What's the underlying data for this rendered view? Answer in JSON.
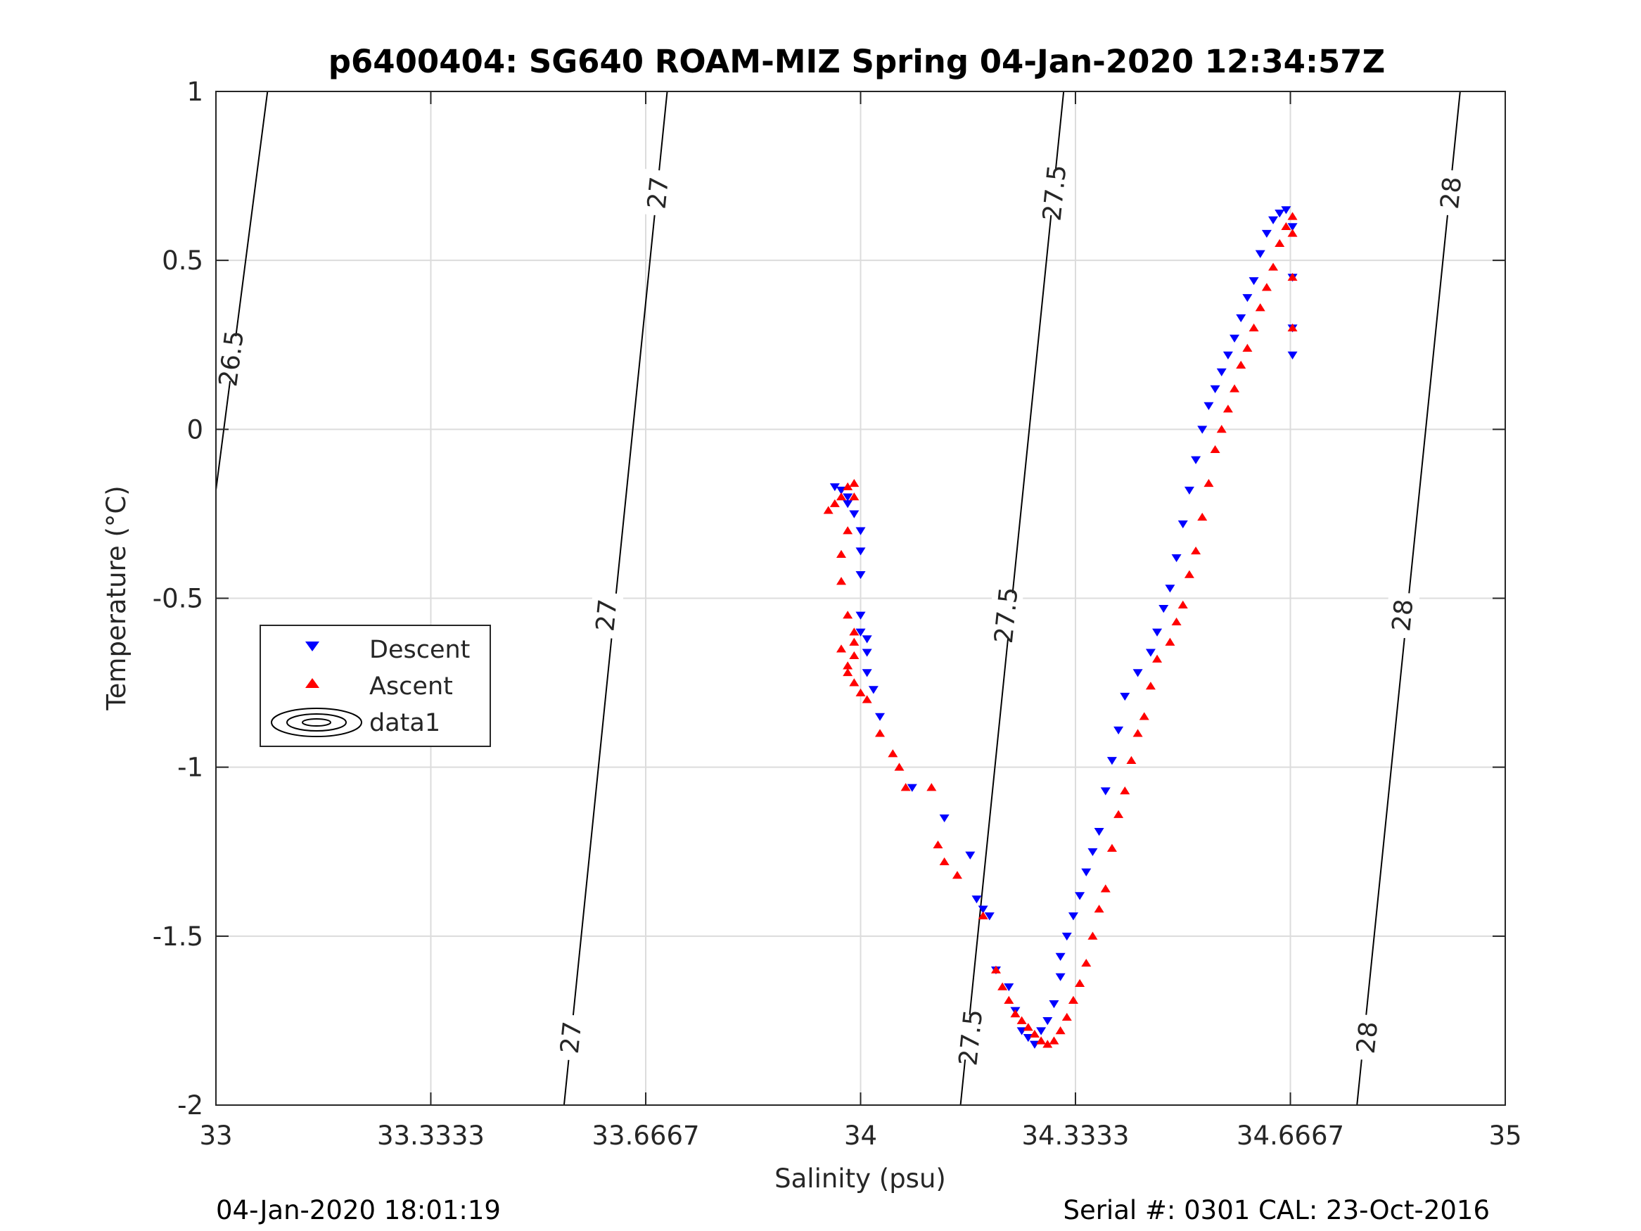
{
  "chart_data": {
    "type": "scatter",
    "title": "p6400404: SG640 ROAM-MIZ Spring 04-Jan-2020 12:34:57Z",
    "xlabel": "Salinity (psu)",
    "ylabel": "Temperature (°C)",
    "xlim": [
      33,
      35
    ],
    "ylim": [
      -2,
      1
    ],
    "xticks": [
      33,
      33.3333,
      33.6667,
      34,
      34.3333,
      34.6667,
      35
    ],
    "xtick_labels": [
      "33",
      "33.3333",
      "33.6667",
      "34",
      "34.3333",
      "34.6667",
      "35"
    ],
    "yticks": [
      -2,
      -1.5,
      -1,
      -0.5,
      0,
      0.5,
      1
    ],
    "ytick_labels": [
      "-2",
      "-1.5",
      "-1",
      "-0.5",
      "0",
      "0.5",
      "1"
    ],
    "grid": true,
    "legend_position": "left-middle",
    "series": [
      {
        "name": "Descent",
        "marker": "triangle-down",
        "color": "#0000ff",
        "x": [
          33.96,
          33.97,
          33.98,
          33.98,
          33.99,
          34.0,
          34.0,
          34.0,
          34.0,
          34.0,
          34.01,
          34.01,
          34.01,
          34.02,
          34.03,
          34.08,
          34.13,
          34.17,
          34.18,
          34.19,
          34.2,
          34.21,
          34.23,
          34.24,
          34.25,
          34.26,
          34.27,
          34.28,
          34.29,
          34.3,
          34.31,
          34.31,
          34.32,
          34.33,
          34.34,
          34.35,
          34.36,
          34.37,
          34.38,
          34.39,
          34.4,
          34.41,
          34.43,
          34.45,
          34.46,
          34.47,
          34.48,
          34.49,
          34.5,
          34.51,
          34.52,
          34.53,
          34.54,
          34.55,
          34.56,
          34.57,
          34.58,
          34.59,
          34.6,
          34.61,
          34.62,
          34.63,
          34.64,
          34.65,
          34.66,
          34.67,
          34.67,
          34.67,
          34.67
        ],
        "y": [
          -0.17,
          -0.18,
          -0.2,
          -0.22,
          -0.25,
          -0.3,
          -0.36,
          -0.43,
          -0.55,
          -0.6,
          -0.62,
          -0.66,
          -0.72,
          -0.77,
          -0.85,
          -1.06,
          -1.15,
          -1.26,
          -1.39,
          -1.42,
          -1.44,
          -1.6,
          -1.65,
          -1.72,
          -1.78,
          -1.8,
          -1.82,
          -1.78,
          -1.75,
          -1.7,
          -1.62,
          -1.56,
          -1.5,
          -1.44,
          -1.38,
          -1.31,
          -1.25,
          -1.19,
          -1.07,
          -0.98,
          -0.89,
          -0.79,
          -0.72,
          -0.66,
          -0.6,
          -0.53,
          -0.47,
          -0.38,
          -0.28,
          -0.18,
          -0.09,
          0.0,
          0.07,
          0.12,
          0.17,
          0.22,
          0.27,
          0.33,
          0.39,
          0.44,
          0.52,
          0.58,
          0.62,
          0.64,
          0.65,
          0.6,
          0.45,
          0.3,
          0.22
        ]
      },
      {
        "name": "Ascent",
        "marker": "triangle-up",
        "color": "#ff0000",
        "x": [
          33.95,
          33.96,
          33.97,
          33.98,
          33.99,
          33.99,
          33.98,
          33.97,
          33.97,
          33.98,
          33.99,
          33.99,
          33.99,
          33.98,
          33.97,
          33.98,
          33.99,
          34.0,
          34.01,
          34.03,
          34.05,
          34.06,
          34.07,
          34.11,
          34.12,
          34.13,
          34.15,
          34.19,
          34.21,
          34.22,
          34.23,
          34.24,
          34.25,
          34.26,
          34.27,
          34.28,
          34.29,
          34.3,
          34.31,
          34.32,
          34.33,
          34.34,
          34.35,
          34.36,
          34.37,
          34.38,
          34.39,
          34.4,
          34.41,
          34.42,
          34.43,
          34.44,
          34.45,
          34.46,
          34.48,
          34.49,
          34.5,
          34.51,
          34.52,
          34.53,
          34.54,
          34.55,
          34.56,
          34.57,
          34.58,
          34.59,
          34.6,
          34.61,
          34.62,
          34.63,
          34.64,
          34.65,
          34.66,
          34.67,
          34.67,
          34.67,
          34.67
        ],
        "y": [
          -0.24,
          -0.22,
          -0.2,
          -0.17,
          -0.16,
          -0.2,
          -0.3,
          -0.37,
          -0.45,
          -0.55,
          -0.6,
          -0.63,
          -0.67,
          -0.7,
          -0.65,
          -0.72,
          -0.75,
          -0.78,
          -0.8,
          -0.9,
          -0.96,
          -1.0,
          -1.06,
          -1.06,
          -1.23,
          -1.28,
          -1.32,
          -1.44,
          -1.6,
          -1.65,
          -1.69,
          -1.73,
          -1.75,
          -1.77,
          -1.79,
          -1.81,
          -1.82,
          -1.81,
          -1.78,
          -1.74,
          -1.69,
          -1.64,
          -1.58,
          -1.5,
          -1.42,
          -1.36,
          -1.24,
          -1.14,
          -1.07,
          -0.98,
          -0.9,
          -0.85,
          -0.76,
          -0.68,
          -0.63,
          -0.57,
          -0.52,
          -0.43,
          -0.36,
          -0.26,
          -0.16,
          -0.06,
          0.0,
          0.06,
          0.12,
          0.19,
          0.24,
          0.3,
          0.36,
          0.42,
          0.48,
          0.55,
          0.6,
          0.63,
          0.58,
          0.45,
          0.3
        ]
      }
    ],
    "contours": [
      {
        "label": "26.5",
        "x": [
          33.0,
          33.08
        ],
        "y": [
          -0.18,
          1.0
        ],
        "label_positions": [
          [
            33.023,
            0.21
          ]
        ]
      },
      {
        "label": "27",
        "x": [
          33.54,
          33.7
        ],
        "y": [
          -2.0,
          1.0
        ],
        "label_positions": [
          [
            33.55,
            -1.8
          ],
          [
            33.605,
            -0.55
          ],
          [
            33.685,
            0.7
          ]
        ]
      },
      {
        "label": "27.5",
        "x": [
          34.155,
          34.315
        ],
        "y": [
          -2.0,
          1.0
        ],
        "label_positions": [
          [
            34.17,
            -1.8
          ],
          [
            34.225,
            -0.55
          ],
          [
            34.3,
            0.7
          ]
        ]
      },
      {
        "label": "28",
        "x": [
          34.77,
          34.93
        ],
        "y": [
          -2.0,
          1.0
        ],
        "label_positions": [
          [
            34.785,
            -1.8
          ],
          [
            34.84,
            -0.55
          ],
          [
            34.915,
            0.7
          ]
        ]
      }
    ],
    "legend": {
      "entries": [
        {
          "label": "Descent",
          "marker": "triangle-down",
          "color": "#0000ff"
        },
        {
          "label": "Ascent",
          "marker": "triangle-up",
          "color": "#ff0000"
        },
        {
          "label": "data1",
          "marker": "contour",
          "color": "#000000"
        }
      ]
    }
  },
  "footer": {
    "left": "04-Jan-2020 18:01:19",
    "right": "Serial #: 0301  CAL: 23-Oct-2016"
  }
}
